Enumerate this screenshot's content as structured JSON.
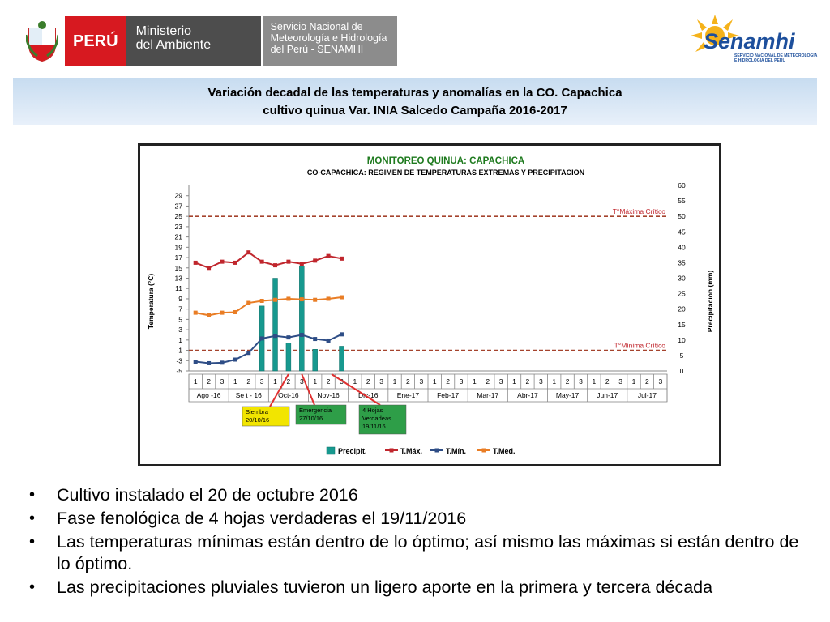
{
  "header": {
    "peru": "PERÚ",
    "ministry": "Ministerio del Ambiente",
    "ministry_line1": "Ministerio",
    "ministry_line2": "del Ambiente",
    "service_line1": "Servicio Nacional de",
    "service_line2": "Meteorología e Hidrología",
    "service_line3": "del Perú - SENAMHI",
    "senamhi_logo": "Senamhi",
    "senamhi_sub1": "SERVICIO NACIONAL DE METEOROLOGÍA",
    "senamhi_sub2": "E HIDROLOGÍA DEL PERÚ"
  },
  "slide_title": {
    "line1": "Variación decadal de las temperaturas y anomalías en la CO. Capachica",
    "line2": "cultivo quinua Var. INIA Salcedo Campaña 2016-2017"
  },
  "chart_data": {
    "type": "bar+line",
    "title": "MONITOREO QUINUA: CAPACHICA",
    "subtitle": "CO-CAPACHICA: REGIMEN DE TEMPERATURAS EXTREMAS Y PRECIPITACION",
    "ylabel": "Temperatura (°C)",
    "y2label": "Precipitación (mm)",
    "ylim": [
      -5,
      31
    ],
    "y2lim": [
      0,
      60
    ],
    "yticks": [
      -5,
      -3,
      -1,
      1,
      3,
      5,
      7,
      9,
      11,
      13,
      15,
      17,
      19,
      21,
      23,
      25,
      27,
      29
    ],
    "y2ticks": [
      0,
      5,
      10,
      15,
      20,
      25,
      30,
      35,
      40,
      45,
      50,
      55,
      60
    ],
    "decades": [
      "1",
      "2",
      "3",
      "1",
      "2",
      "3",
      "1",
      "2",
      "3",
      "1",
      "2",
      "3",
      "1",
      "2",
      "3",
      "1",
      "2",
      "3",
      "1",
      "2",
      "3",
      "1",
      "2",
      "3",
      "1",
      "2",
      "3",
      "1",
      "2",
      "3",
      "1",
      "2",
      "3",
      "1",
      "2",
      "3"
    ],
    "months": [
      "Ago -16",
      "Se t - 16",
      "Oct-16",
      "Nov-16",
      "Dic-16",
      "Ene-17",
      "Feb-17",
      "Mar-17",
      "Abr-17",
      "May-17",
      "Jun-17",
      "Jul-17"
    ],
    "series": [
      {
        "name": "Precipit.",
        "type": "bar",
        "axis": "y2",
        "color": "#17998f",
        "values": [
          null,
          null,
          null,
          null,
          null,
          21,
          30,
          9,
          34,
          7,
          null,
          8
        ]
      },
      {
        "name": "T.Máx.",
        "type": "line",
        "axis": "y",
        "color": "#c0262d",
        "values": [
          16,
          15,
          16.2,
          16,
          18,
          16.2,
          15.5,
          16.2,
          15.8,
          16.4,
          17.3,
          16.8
        ]
      },
      {
        "name": "T.Mín.",
        "type": "line",
        "axis": "y",
        "color": "#2e4d86",
        "values": [
          -3.2,
          -3.5,
          -3.4,
          -2.8,
          -1.5,
          1.3,
          1.8,
          1.5,
          2,
          1.2,
          0.9,
          2.1
        ]
      },
      {
        "name": "T.Med.",
        "type": "line",
        "axis": "y",
        "color": "#e97d25",
        "values": [
          6.3,
          5.8,
          6.3,
          6.4,
          8.2,
          8.6,
          8.8,
          9,
          8.9,
          8.8,
          9,
          9.3
        ]
      }
    ],
    "thresholds": [
      {
        "label": "T°Máxima Crítico",
        "value": 25
      },
      {
        "label": "T°Mínima Crítico",
        "value": -1
      }
    ],
    "annotations": [
      {
        "text": "Siembra 20/10/16",
        "line1": "Siembra",
        "line2": "20/10/16"
      },
      {
        "text": "Emergencia 27/10/16",
        "line1": "Emergencia",
        "line2": "27/10/16"
      },
      {
        "text": "4 Hojas Verdadeas 19/11/16",
        "line1": "4 Hojas",
        "line2": "Verdadeas",
        "line3": "19/11/16"
      }
    ],
    "legend": [
      "Precipit.",
      "T.Máx.",
      "T.Mín.",
      "T.Med."
    ],
    "legend_position": "bottom"
  },
  "bullets": [
    "Cultivo instalado el 20 de octubre 2016",
    "Fase fenológica de 4 hojas verdaderas el 19/11/2016",
    "Las temperaturas mínimas están dentro de lo óptimo; así mismo las máximas si están dentro de lo óptimo.",
    "Las precipitaciones pluviales tuvieron un ligero aporte en la primera y tercera década"
  ]
}
